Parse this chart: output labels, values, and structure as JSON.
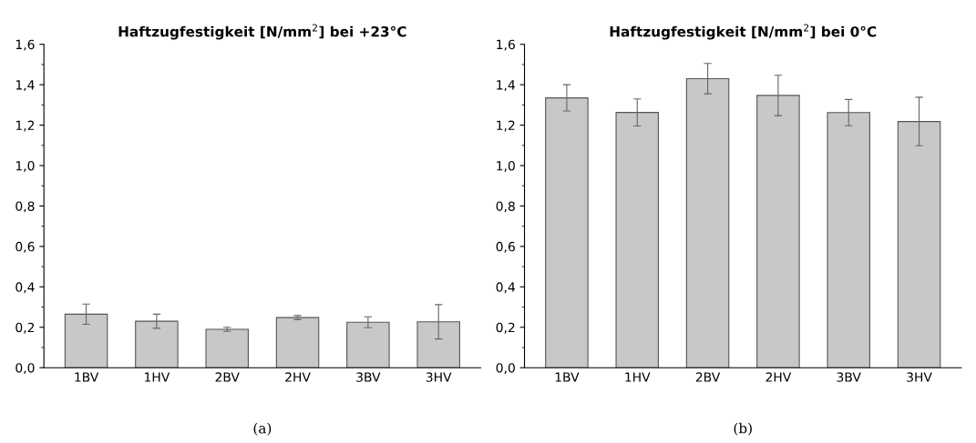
{
  "chart_data": [
    {
      "type": "bar",
      "title": "Haftzugfestigkeit [N/mm$^{2}$] bei +23°C",
      "categories": [
        "1BV",
        "1HV",
        "2BV",
        "2HV",
        "3BV",
        "3HV"
      ],
      "color": "#c8c8c8",
      "values": [
        0.265,
        0.23,
        0.19,
        0.248,
        0.225,
        0.227
      ],
      "errors": [
        0.05,
        0.035,
        0.01,
        0.01,
        0.027,
        0.085
      ],
      "ylim": [
        0,
        1.6
      ],
      "yticks": [
        {
          "value": 0,
          "label": "0,0"
        },
        {
          "value": 0.2,
          "label": "0,2"
        },
        {
          "value": 0.4,
          "label": "0,4"
        },
        {
          "value": 0.6,
          "label": "0,6"
        },
        {
          "value": 0.8,
          "label": "0,8"
        },
        {
          "value": 1.0,
          "label": "1,0"
        },
        {
          "value": 1.2,
          "label": "1,2"
        },
        {
          "value": 1.4,
          "label": "1,4"
        },
        {
          "value": 1.6,
          "label": "1,6"
        }
      ],
      "grid": false,
      "annotations": [
        "(a)"
      ]
    },
    {
      "type": "bar",
      "title": "Haftzugfestigkeit [N/mm$^{2}$] bei 0°C",
      "categories": [
        "1BV",
        "1HV",
        "2BV",
        "2HV",
        "3BV",
        "3HV"
      ],
      "color": "#c8c8c8",
      "values": [
        1.335,
        1.263,
        1.43,
        1.347,
        1.262,
        1.218
      ],
      "errors": [
        0.065,
        0.067,
        0.075,
        0.1,
        0.065,
        0.12
      ],
      "ylim": [
        0,
        1.6
      ],
      "yticks": [
        {
          "value": 0,
          "label": "0,0"
        },
        {
          "value": 0.2,
          "label": "0,2"
        },
        {
          "value": 0.4,
          "label": "0,4"
        },
        {
          "value": 0.6,
          "label": "0,6"
        },
        {
          "value": 0.8,
          "label": "0,8"
        },
        {
          "value": 1.0,
          "label": "1,0"
        },
        {
          "value": 1.2,
          "label": "1,2"
        },
        {
          "value": 1.4,
          "label": "1,4"
        },
        {
          "value": 1.6,
          "label": "1,6"
        }
      ],
      "grid": false,
      "annotations": [
        "(b)"
      ]
    }
  ]
}
